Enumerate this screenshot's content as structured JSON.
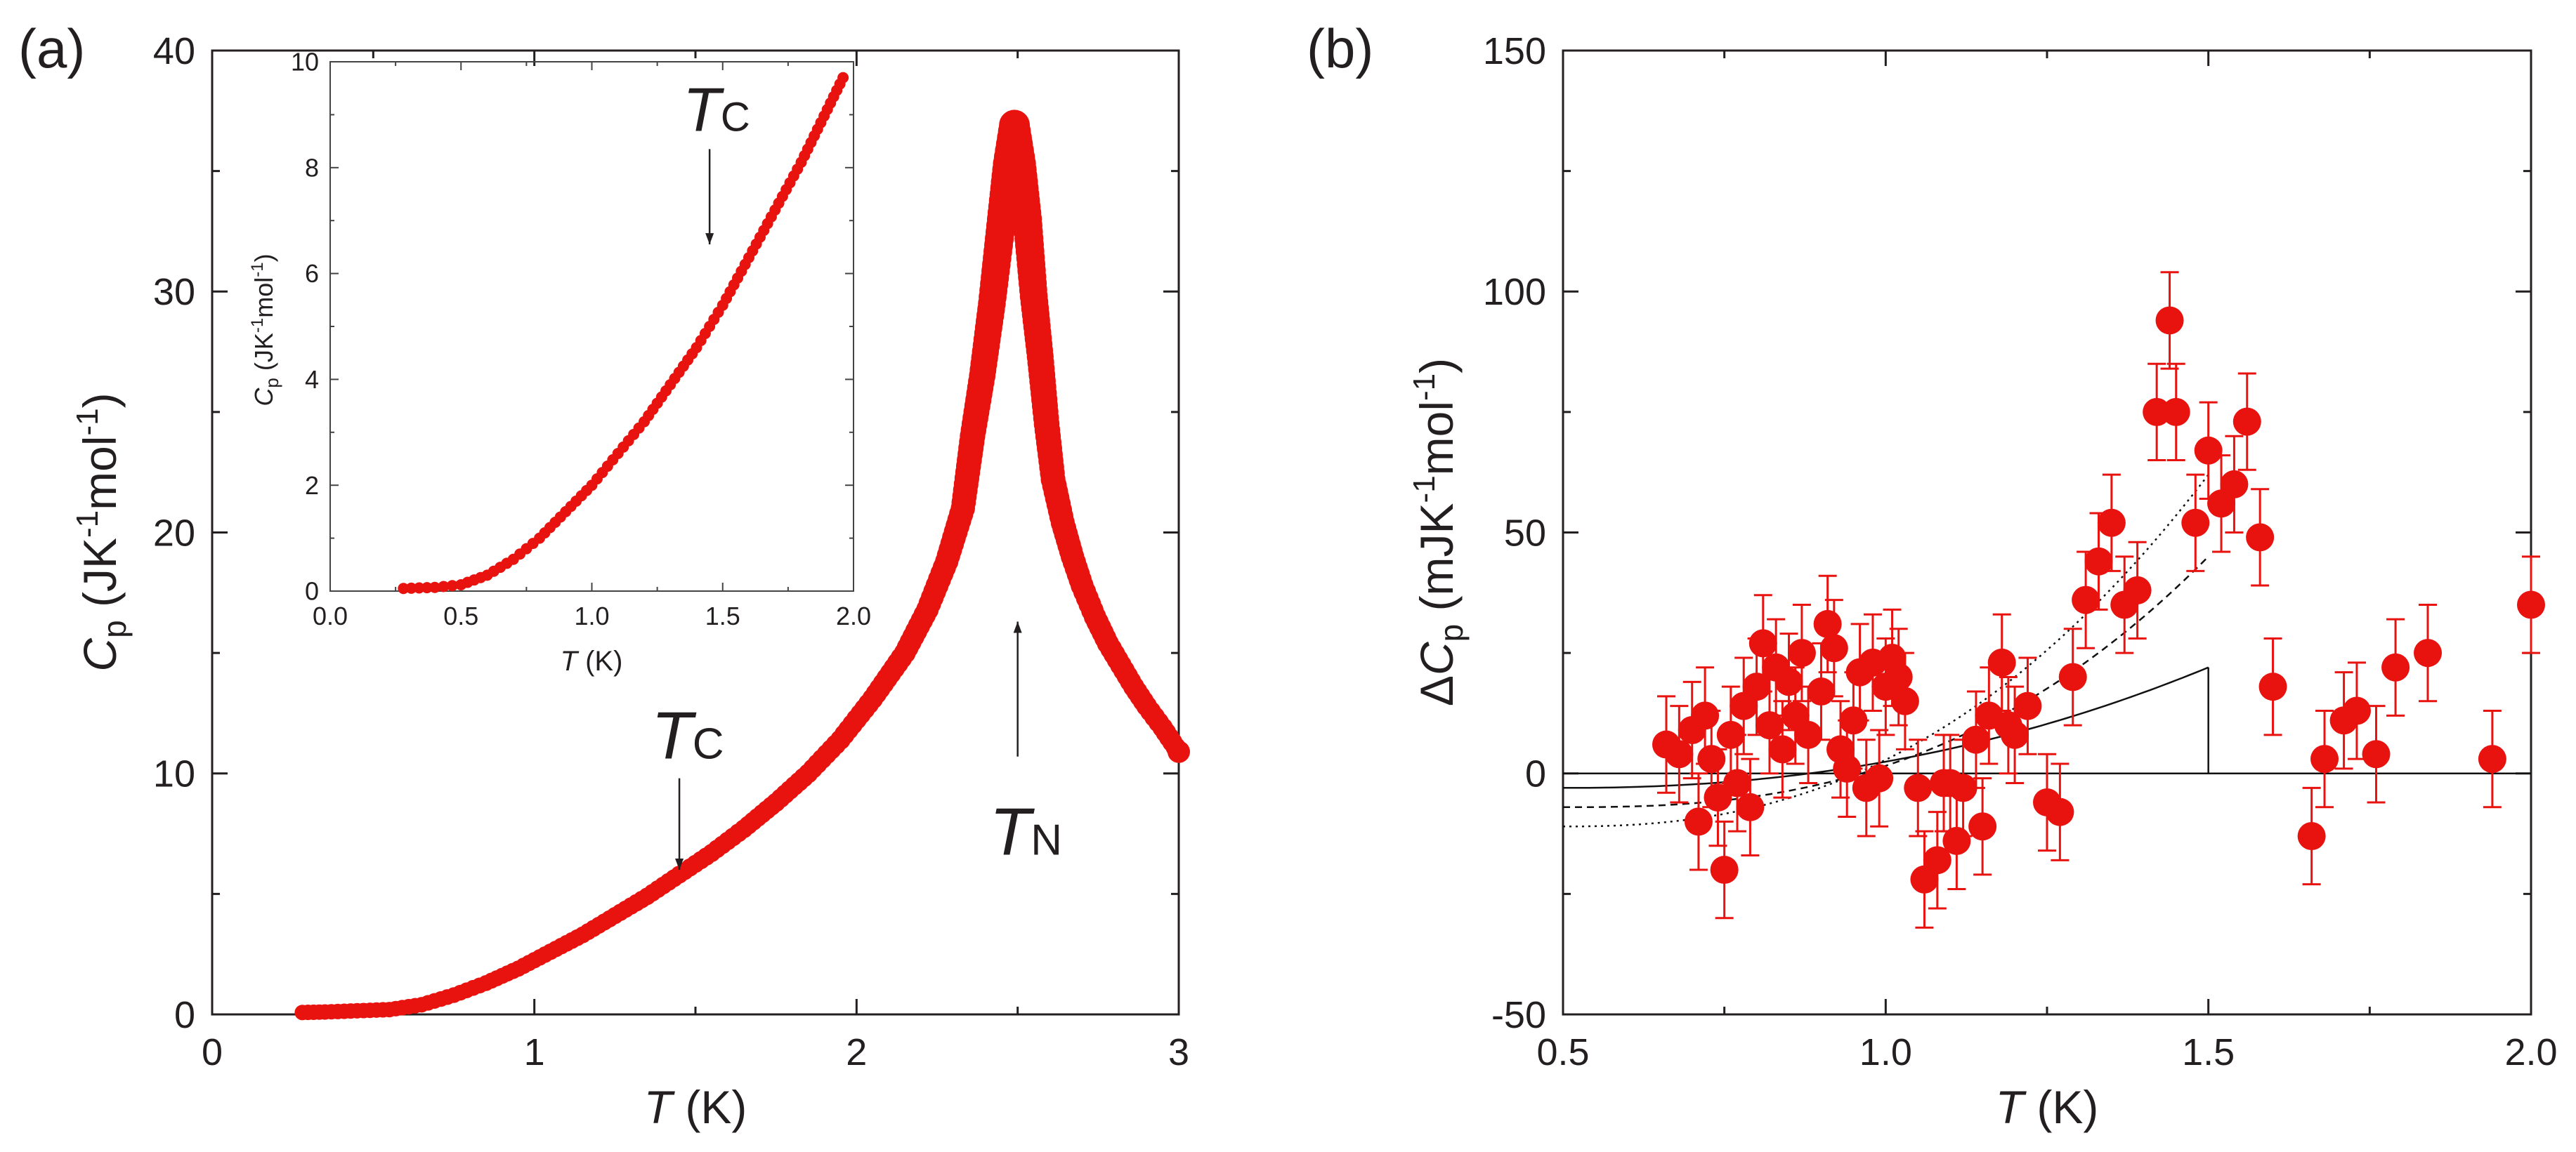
{
  "colors": {
    "data": "#e8120f",
    "axis": "#231f20",
    "fit": "#111111"
  },
  "chart_data": [
    {
      "panel": "(a)",
      "type": "scatter",
      "xlabel": {
        "italic": "T",
        "rest": " (K)"
      },
      "ylabel": {
        "italic": "C",
        "sub": "p",
        "rest": " (JK",
        "sup1": "-1",
        "mid": "mol",
        "sup2": "-1",
        "end": ")"
      },
      "xlim": [
        0,
        3
      ],
      "ylim": [
        0,
        40
      ],
      "xticks": [
        "0",
        "1",
        "2",
        "3"
      ],
      "yticks": [
        "0",
        "10",
        "20",
        "30",
        "40"
      ],
      "annotations": {
        "Tc": {
          "main": "T",
          "sub": "C",
          "T": 1.45,
          "arrow_from": 9.8,
          "arrow_to": 6.0
        },
        "TN": {
          "main": "T",
          "sub": "N",
          "T": 2.5,
          "arrow_from": 10.7,
          "arrow_to": 16.3
        }
      },
      "series": [
        {
          "name": "Cp",
          "points": [
            [
              0.28,
              0.08
            ],
            [
              0.35,
              0.1
            ],
            [
              0.45,
              0.15
            ],
            [
              0.55,
              0.2
            ],
            [
              0.65,
              0.4
            ],
            [
              0.75,
              0.8
            ],
            [
              0.85,
              1.3
            ],
            [
              0.95,
              1.9
            ],
            [
              1.05,
              2.6
            ],
            [
              1.15,
              3.3
            ],
            [
              1.25,
              4.1
            ],
            [
              1.35,
              4.9
            ],
            [
              1.45,
              5.8
            ],
            [
              1.55,
              6.7
            ],
            [
              1.65,
              7.7
            ],
            [
              1.75,
              8.8
            ],
            [
              1.85,
              10.0
            ],
            [
              1.95,
              11.4
            ],
            [
              2.05,
              13.1
            ],
            [
              2.15,
              15.0
            ],
            [
              2.22,
              16.8
            ],
            [
              2.28,
              18.8
            ],
            [
              2.33,
              21.0
            ],
            [
              2.36,
              24.0
            ],
            [
              2.39,
              26.5
            ],
            [
              2.42,
              29.5
            ],
            [
              2.45,
              33.0
            ],
            [
              2.47,
              35.3
            ],
            [
              2.49,
              36.9
            ],
            [
              2.51,
              35.3
            ],
            [
              2.53,
              33.0
            ],
            [
              2.55,
              29.8
            ],
            [
              2.57,
              27.3
            ],
            [
              2.59,
              24.5
            ],
            [
              2.61,
              22.2
            ],
            [
              2.64,
              20.4
            ],
            [
              2.67,
              19.0
            ],
            [
              2.7,
              17.8
            ],
            [
              2.74,
              16.5
            ],
            [
              2.78,
              15.4
            ],
            [
              2.82,
              14.5
            ],
            [
              2.86,
              13.6
            ],
            [
              2.9,
              12.8
            ],
            [
              2.95,
              11.9
            ],
            [
              3.0,
              10.9
            ]
          ]
        }
      ]
    },
    {
      "panel": "(a) inset",
      "type": "scatter",
      "xlabel": {
        "italic": "T",
        "rest": " (K)"
      },
      "ylabel": {
        "italic": "C",
        "sub": "p",
        "rest": " (JK",
        "sup1": "-1",
        "mid": "mol",
        "sup2": "-1",
        "end": ")"
      },
      "xlim": [
        0,
        2
      ],
      "ylim": [
        0,
        10
      ],
      "xticks": [
        "0.0",
        "0.5",
        "1.0",
        "1.5",
        "2.0"
      ],
      "yticks": [
        "0",
        "2",
        "4",
        "6",
        "8",
        "10"
      ],
      "annotations": {
        "Tc": {
          "main": "T",
          "sub": "C",
          "T": 1.45,
          "arrow_from": 8.35,
          "arrow_to": 6.55
        }
      },
      "series": [
        {
          "name": "Cp",
          "points": [
            [
              0.28,
              0.05
            ],
            [
              0.4,
              0.07
            ],
            [
              0.5,
              0.12
            ],
            [
              0.6,
              0.3
            ],
            [
              0.7,
              0.6
            ],
            [
              0.8,
              1.0
            ],
            [
              0.9,
              1.5
            ],
            [
              1.0,
              2.0
            ],
            [
              1.1,
              2.6
            ],
            [
              1.2,
              3.2
            ],
            [
              1.3,
              3.9
            ],
            [
              1.4,
              4.6
            ],
            [
              1.5,
              5.4
            ],
            [
              1.6,
              6.3
            ],
            [
              1.7,
              7.2
            ],
            [
              1.8,
              8.1
            ],
            [
              1.9,
              9.1
            ],
            [
              1.96,
              9.7
            ]
          ]
        }
      ]
    },
    {
      "panel": "(b)",
      "type": "scatter",
      "xlabel": {
        "italic": "T",
        "rest": " (K)"
      },
      "ylabel": {
        "pre": "Δ",
        "italic": "C",
        "sub": "p",
        "rest": " (mJK",
        "sup1": "-1",
        "mid": "mol",
        "sup2": "-1",
        "end": ")"
      },
      "xlim": [
        0.5,
        2.0
      ],
      "ylim": [
        -50,
        150
      ],
      "xticks": [
        "0.5",
        "1.0",
        "1.5",
        "2.0"
      ],
      "yticks": [
        "-50",
        "0",
        "50",
        "100",
        "150"
      ],
      "series": [
        {
          "name": "ΔCp",
          "points": [
            [
              0.66,
              6
            ],
            [
              0.68,
              4
            ],
            [
              0.7,
              9
            ],
            [
              0.71,
              -10
            ],
            [
              0.72,
              12
            ],
            [
              0.73,
              3
            ],
            [
              0.74,
              -5
            ],
            [
              0.75,
              -20
            ],
            [
              0.76,
              8
            ],
            [
              0.77,
              -2
            ],
            [
              0.78,
              14
            ],
            [
              0.79,
              -7
            ],
            [
              0.8,
              18
            ],
            [
              0.81,
              27
            ],
            [
              0.82,
              10
            ],
            [
              0.83,
              22
            ],
            [
              0.84,
              5
            ],
            [
              0.85,
              19
            ],
            [
              0.86,
              12
            ],
            [
              0.87,
              25
            ],
            [
              0.88,
              8
            ],
            [
              0.9,
              17
            ],
            [
              0.91,
              31
            ],
            [
              0.92,
              26
            ],
            [
              0.93,
              5
            ],
            [
              0.94,
              1
            ],
            [
              0.95,
              11
            ],
            [
              0.96,
              21
            ],
            [
              0.97,
              -3
            ],
            [
              0.98,
              23
            ],
            [
              0.99,
              -1
            ],
            [
              1.0,
              18
            ],
            [
              1.01,
              24
            ],
            [
              1.02,
              20
            ],
            [
              1.03,
              15
            ],
            [
              1.05,
              -3
            ],
            [
              1.06,
              -22
            ],
            [
              1.08,
              -18
            ],
            [
              1.09,
              -2
            ],
            [
              1.1,
              -2
            ],
            [
              1.11,
              -14
            ],
            [
              1.12,
              -3
            ],
            [
              1.14,
              7
            ],
            [
              1.15,
              -11
            ],
            [
              1.16,
              12
            ],
            [
              1.18,
              23
            ],
            [
              1.19,
              10
            ],
            [
              1.2,
              8
            ],
            [
              1.22,
              14
            ],
            [
              1.25,
              -6
            ],
            [
              1.27,
              -8
            ],
            [
              1.29,
              20
            ],
            [
              1.31,
              36
            ],
            [
              1.33,
              44
            ],
            [
              1.35,
              52
            ],
            [
              1.37,
              35
            ],
            [
              1.39,
              38
            ],
            [
              1.42,
              75
            ],
            [
              1.44,
              94
            ],
            [
              1.45,
              75
            ],
            [
              1.48,
              52
            ],
            [
              1.5,
              67
            ],
            [
              1.52,
              56
            ],
            [
              1.54,
              60
            ],
            [
              1.56,
              73
            ],
            [
              1.58,
              49
            ],
            [
              1.6,
              18
            ],
            [
              1.66,
              -13
            ],
            [
              1.68,
              3
            ],
            [
              1.71,
              11
            ],
            [
              1.73,
              13
            ],
            [
              1.76,
              4
            ],
            [
              1.79,
              22
            ],
            [
              1.84,
              25
            ],
            [
              1.94,
              3
            ],
            [
              2.0,
              35
            ]
          ],
          "error": 10
        }
      ],
      "fits": [
        {
          "style": "solid",
          "T_end": 1.5
        },
        {
          "style": "dashed",
          "T_end": 1.5
        },
        {
          "style": "dotted",
          "T_end": 1.5
        }
      ]
    }
  ]
}
